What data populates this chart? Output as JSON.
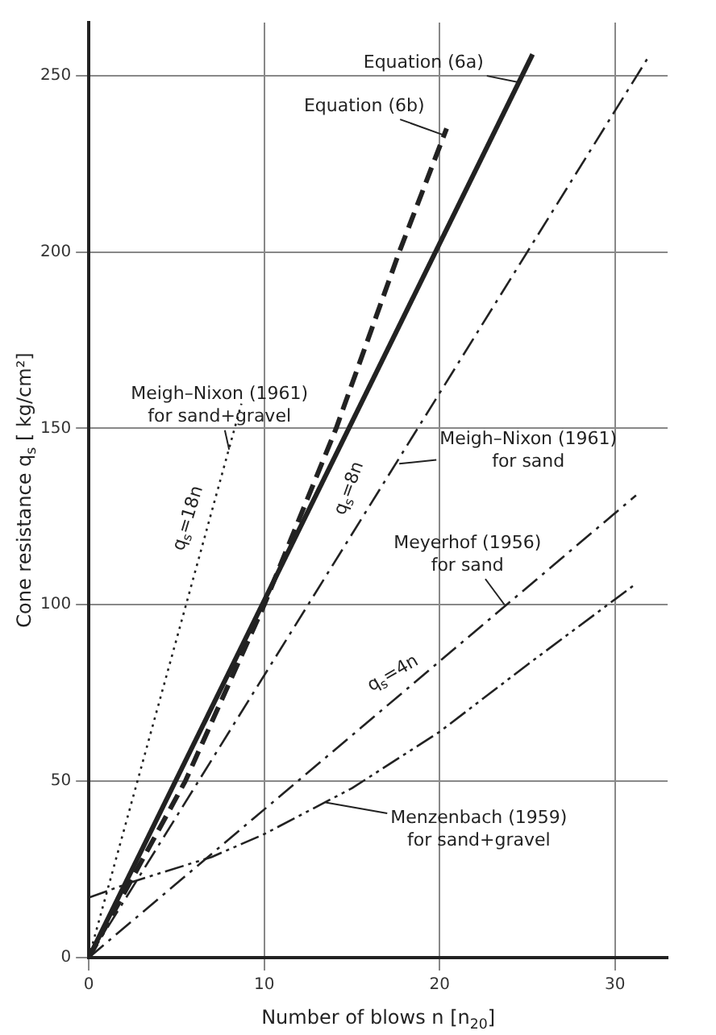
{
  "chart_data": {
    "type": "line",
    "xlabel": "Number of blows n [n$_{20}$]",
    "ylabel": "Cone resistance q$_{s}$ [ kg/cm²]",
    "xlim": [
      0,
      33
    ],
    "ylim": [
      0,
      265
    ],
    "xticks": [
      0,
      10,
      20,
      30
    ],
    "yticks": [
      0,
      50,
      100,
      150,
      200,
      250
    ],
    "grid": true,
    "legend": false,
    "marker": "none",
    "series": [
      {
        "color": "#222222",
        "line_style": "solid",
        "x": [
          0,
          25.3
        ],
        "values": [
          0,
          256
        ]
      },
      {
        "color": "#222222",
        "line_style": "dashed",
        "x": [
          0,
          5.5,
          10,
          14.1,
          17.7,
          20.4
        ],
        "values": [
          0,
          50,
          100,
          150,
          200,
          235
        ]
      },
      {
        "color": "#222222",
        "line_style": "dotted",
        "x": [
          0,
          8.7
        ],
        "values": [
          0,
          157
        ]
      },
      {
        "color": "#222222",
        "line_style": "dashdot",
        "x": [
          0,
          32
        ],
        "values": [
          0,
          256
        ]
      },
      {
        "color": "#222222",
        "line_style": "dashdot",
        "x": [
          0,
          31.2
        ],
        "values": [
          0,
          131
        ]
      },
      {
        "color": "#222222",
        "line_style": "dashdotdot",
        "x": [
          0,
          2.5,
          7,
          10,
          15,
          20,
          25,
          31.2
        ],
        "values": [
          17,
          21.5,
          28.5,
          35,
          48,
          64,
          83,
          106
        ]
      }
    ],
    "annotations": [
      {
        "text": "Equation (6a)",
        "x": 24.6,
        "y": 248
      },
      {
        "text": "Equation (6b)",
        "x": 20.3,
        "y": 233
      },
      {
        "text": "Meigh–Nixon (1961) for sand+gravel",
        "x": 8,
        "y": 144
      },
      {
        "text": "q$_{s}$=18n",
        "x": 6.6,
        "y": 119
      },
      {
        "text": "q$_{s}$=8n",
        "x": 16.7,
        "y": 133
      },
      {
        "text": "Meigh–Nixon (1961) for sand",
        "x": 17.7,
        "y": 140
      },
      {
        "text": "Meyerhof (1956) for sand",
        "x": 23.7,
        "y": 100
      },
      {
        "text": "q$_{s}$=4n",
        "x": 17.9,
        "y": 75
      },
      {
        "text": "Menzenbach (1959) for sand+gravel",
        "x": 13.5,
        "y": 44
      }
    ]
  }
}
